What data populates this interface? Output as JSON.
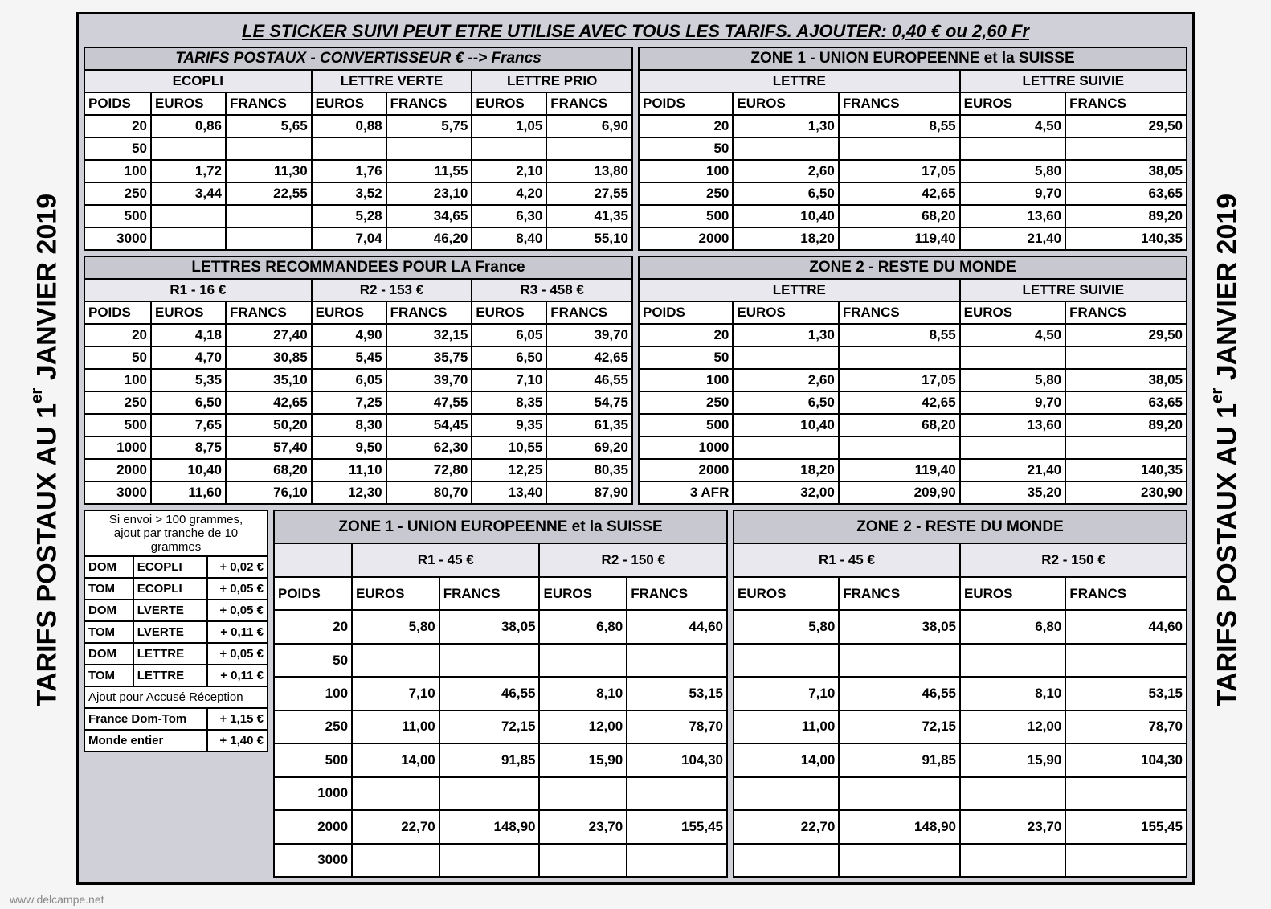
{
  "side_title_prefix": "TARIFS POSTAUX AU 1",
  "side_title_suffix": " JANVIER 2019",
  "side_title_super": "er",
  "topbar": "LE STICKER SUIVI PEUT ETRE UTILISE AVEC TOUS LES TARIFS. AJOUTER: 0,40 € ou  2,60 Fr",
  "watermark": "www.delcampe.net",
  "hdr_left_1": "TARIFS  POSTAUX - CONVERTISSEUR   €  --> Francs",
  "hdr_right_1": "ZONE 1 -  UNION  EUROPEENNE et la SUISSE",
  "sub_ecopli": "ECOPLI",
  "sub_lverte": "LETTRE VERTE",
  "sub_lprio": "LETTRE PRIO",
  "sub_lettre": "LETTRE",
  "sub_lsuivie": "LETTRE SUIVIE",
  "col_poids": "POIDS",
  "col_euros": "EUROS",
  "col_francs": "FRANCS",
  "rows_top_left": [
    [
      "20",
      "0,86",
      "5,65",
      "0,88",
      "5,75",
      "1,05",
      "6,90"
    ],
    [
      "50",
      "",
      "",
      "",
      "",
      "",
      ""
    ],
    [
      "100",
      "1,72",
      "11,30",
      "1,76",
      "11,55",
      "2,10",
      "13,80"
    ],
    [
      "250",
      "3,44",
      "22,55",
      "3,52",
      "23,10",
      "4,20",
      "27,55"
    ],
    [
      "500",
      "",
      "",
      "5,28",
      "34,65",
      "6,30",
      "41,35"
    ],
    [
      "3000",
      "",
      "",
      "7,04",
      "46,20",
      "8,40",
      "55,10"
    ]
  ],
  "rows_top_right": [
    [
      "20",
      "1,30",
      "8,55",
      "4,50",
      "29,50"
    ],
    [
      "50",
      "",
      "",
      "",
      ""
    ],
    [
      "100",
      "2,60",
      "17,05",
      "5,80",
      "38,05"
    ],
    [
      "250",
      "6,50",
      "42,65",
      "9,70",
      "63,65"
    ],
    [
      "500",
      "10,40",
      "68,20",
      "13,60",
      "89,20"
    ],
    [
      "2000",
      "18,20",
      "119,40",
      "21,40",
      "140,35"
    ]
  ],
  "hdr_left_2": "LETTRES  RECOMMANDEES POUR LA France",
  "hdr_right_2": "ZONE 2 -  RESTE DU MONDE",
  "sub_r1": "R1 - 16 €",
  "sub_r2": "R2 - 153 €",
  "sub_r3": "R3 -  458 €",
  "rows_mid_left": [
    [
      "20",
      "4,18",
      "27,40",
      "4,90",
      "32,15",
      "6,05",
      "39,70"
    ],
    [
      "50",
      "4,70",
      "30,85",
      "5,45",
      "35,75",
      "6,50",
      "42,65"
    ],
    [
      "100",
      "5,35",
      "35,10",
      "6,05",
      "39,70",
      "7,10",
      "46,55"
    ],
    [
      "250",
      "6,50",
      "42,65",
      "7,25",
      "47,55",
      "8,35",
      "54,75"
    ],
    [
      "500",
      "7,65",
      "50,20",
      "8,30",
      "54,45",
      "9,35",
      "61,35"
    ],
    [
      "1000",
      "8,75",
      "57,40",
      "9,50",
      "62,30",
      "10,55",
      "69,20"
    ],
    [
      "2000",
      "10,40",
      "68,20",
      "11,10",
      "72,80",
      "12,25",
      "80,35"
    ],
    [
      "3000",
      "11,60",
      "76,10",
      "12,30",
      "80,70",
      "13,40",
      "87,90"
    ]
  ],
  "rows_mid_right": [
    [
      "20",
      "1,30",
      "8,55",
      "4,50",
      "29,50"
    ],
    [
      "50",
      "",
      "",
      "",
      ""
    ],
    [
      "100",
      "2,60",
      "17,05",
      "5,80",
      "38,05"
    ],
    [
      "250",
      "6,50",
      "42,65",
      "9,70",
      "63,65"
    ],
    [
      "500",
      "10,40",
      "68,20",
      "13,60",
      "89,20"
    ],
    [
      "1000",
      "",
      "",
      "",
      ""
    ],
    [
      "2000",
      "18,20",
      "119,40",
      "21,40",
      "140,35"
    ],
    [
      "3 AFR",
      "32,00",
      "209,90",
      "35,20",
      "230,90"
    ]
  ],
  "note_l1": "Si envoi > 100 grammes,",
  "note_l2": "ajout par tranche de 10",
  "note_l3": "grammes",
  "surch_rows": [
    [
      "DOM",
      "ECOPLI",
      "+ 0,02 €"
    ],
    [
      "TOM",
      "ECOPLI",
      "+ 0,05 €"
    ],
    [
      "DOM",
      "LVERTE",
      "+ 0,05 €"
    ],
    [
      "TOM",
      "LVERTE",
      "+ 0,11 €"
    ],
    [
      "DOM",
      "LETTRE",
      "+ 0,05 €"
    ],
    [
      "TOM",
      "LETTRE",
      "+ 0,11 €"
    ]
  ],
  "ar_title": "Ajout pour Accusé Réception",
  "ar_rows": [
    [
      "France Dom-Tom",
      "+ 1,15 €"
    ],
    [
      "Monde entier",
      "+ 1,40 €"
    ]
  ],
  "hdr_bot_z1": "ZONE 1 -  UNION  EUROPEENNE et la SUISSE",
  "hdr_bot_z2": "ZONE 2 -  RESTE DU MONDE",
  "sub_r1_45": "R1 - 45 €",
  "sub_r2_150": "R2 - 150 €",
  "rows_bot": [
    [
      "20",
      "5,80",
      "38,05",
      "6,80",
      "44,60"
    ],
    [
      "50",
      "",
      "",
      "",
      ""
    ],
    [
      "100",
      "7,10",
      "46,55",
      "8,10",
      "53,15"
    ],
    [
      "250",
      "11,00",
      "72,15",
      "12,00",
      "78,70"
    ],
    [
      "500",
      "14,00",
      "91,85",
      "15,90",
      "104,30"
    ],
    [
      "1000",
      "",
      "",
      "",
      ""
    ],
    [
      "2000",
      "22,70",
      "148,90",
      "23,70",
      "155,45"
    ],
    [
      "3000",
      "",
      "",
      "",
      ""
    ]
  ],
  "rows_bot_z2": [
    [
      "5,80",
      "38,05",
      "6,80",
      "44,60"
    ],
    [
      "",
      "",
      "",
      ""
    ],
    [
      "7,10",
      "46,55",
      "8,10",
      "53,15"
    ],
    [
      "11,00",
      "72,15",
      "12,00",
      "78,70"
    ],
    [
      "14,00",
      "91,85",
      "15,90",
      "104,30"
    ],
    [
      "",
      "",
      "",
      ""
    ],
    [
      "22,70",
      "148,90",
      "23,70",
      "155,45"
    ],
    [
      "",
      "",
      "",
      ""
    ]
  ]
}
